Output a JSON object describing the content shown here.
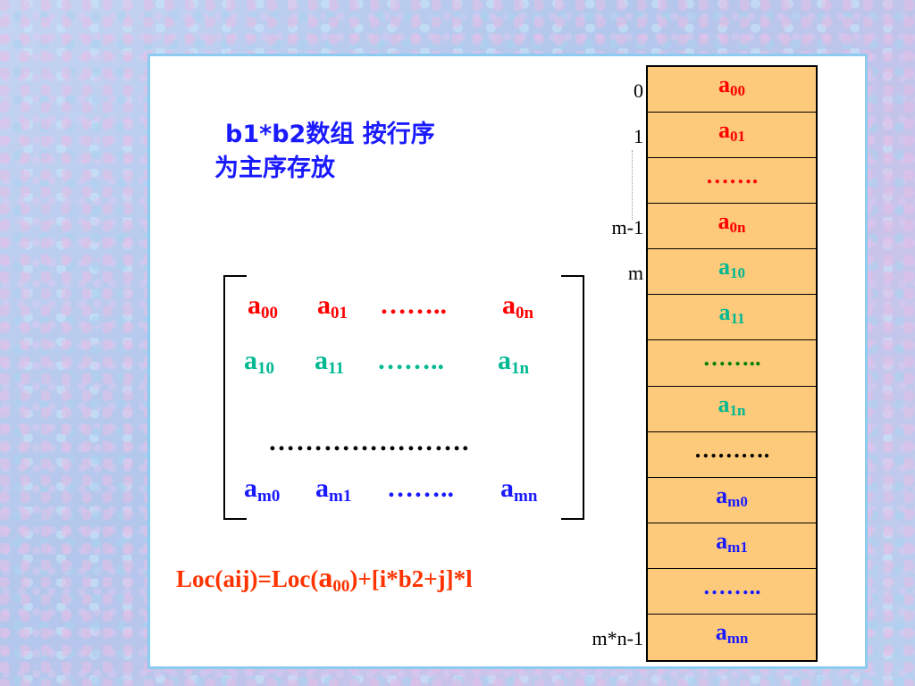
{
  "title": {
    "line1": "b1*b2数组 按行序",
    "line2": "为主序存放"
  },
  "matrix": {
    "rows": [
      {
        "color": "red",
        "cells": [
          {
            "base": "a",
            "sub": "00"
          },
          {
            "base": "a",
            "sub": "01"
          },
          {
            "base": "……..",
            "sub": ""
          },
          {
            "base": "a",
            "sub": "0n"
          }
        ]
      },
      {
        "color": "teal",
        "cells": [
          {
            "base": "a",
            "sub": "10"
          },
          {
            "base": "a",
            "sub": "11"
          },
          {
            "base": "……..",
            "sub": ""
          },
          {
            "base": "a",
            "sub": "1n"
          }
        ]
      },
      {
        "color": "blue",
        "cells": [
          {
            "base": "a",
            "sub": "m0"
          },
          {
            "base": "a",
            "sub": "m1"
          },
          {
            "base": "……..",
            "sub": ""
          },
          {
            "base": "a",
            "sub": "mn"
          }
        ]
      }
    ],
    "middle_dots": "…………………."
  },
  "formula": {
    "prefix": "Loc(aij)=Loc(",
    "big": "a",
    "sub": "00",
    "suffix": ")+[i*b2+j]*l"
  },
  "memory": {
    "cells": [
      {
        "base": "a",
        "sub": "00",
        "color": "red"
      },
      {
        "base": "a",
        "sub": "01",
        "color": "red"
      },
      {
        "base": "…….",
        "sub": "",
        "color": "red"
      },
      {
        "base": "a",
        "sub": "0n",
        "color": "red"
      },
      {
        "base": "a",
        "sub": "10",
        "color": "teal"
      },
      {
        "base": "a",
        "sub": "11",
        "color": "teal"
      },
      {
        "base": "……..",
        "sub": "",
        "color": "green"
      },
      {
        "base": "a",
        "sub": "1n",
        "color": "teal"
      },
      {
        "base": "……….",
        "sub": "",
        "color": "black"
      },
      {
        "base": "a",
        "sub": "m0",
        "color": "blue"
      },
      {
        "base": "a",
        "sub": "m1",
        "color": "blue"
      },
      {
        "base": "……..",
        "sub": "",
        "color": "blue"
      },
      {
        "base": "a",
        "sub": "mn",
        "color": "blue"
      }
    ],
    "indices": [
      {
        "label": "0",
        "row": 0
      },
      {
        "label": "1",
        "row": 1
      },
      {
        "label": "m-1",
        "row": 3
      },
      {
        "label": "m",
        "row": 4
      },
      {
        "label": "m*n-1",
        "row": 12
      }
    ]
  },
  "colors": {
    "red": "#ff0000",
    "teal": "#00b891",
    "blue": "#1a1aff",
    "green": "#008000",
    "black": "#000000",
    "memory_fill": "#fdca7b",
    "panel_border": "#8ecbf0"
  }
}
